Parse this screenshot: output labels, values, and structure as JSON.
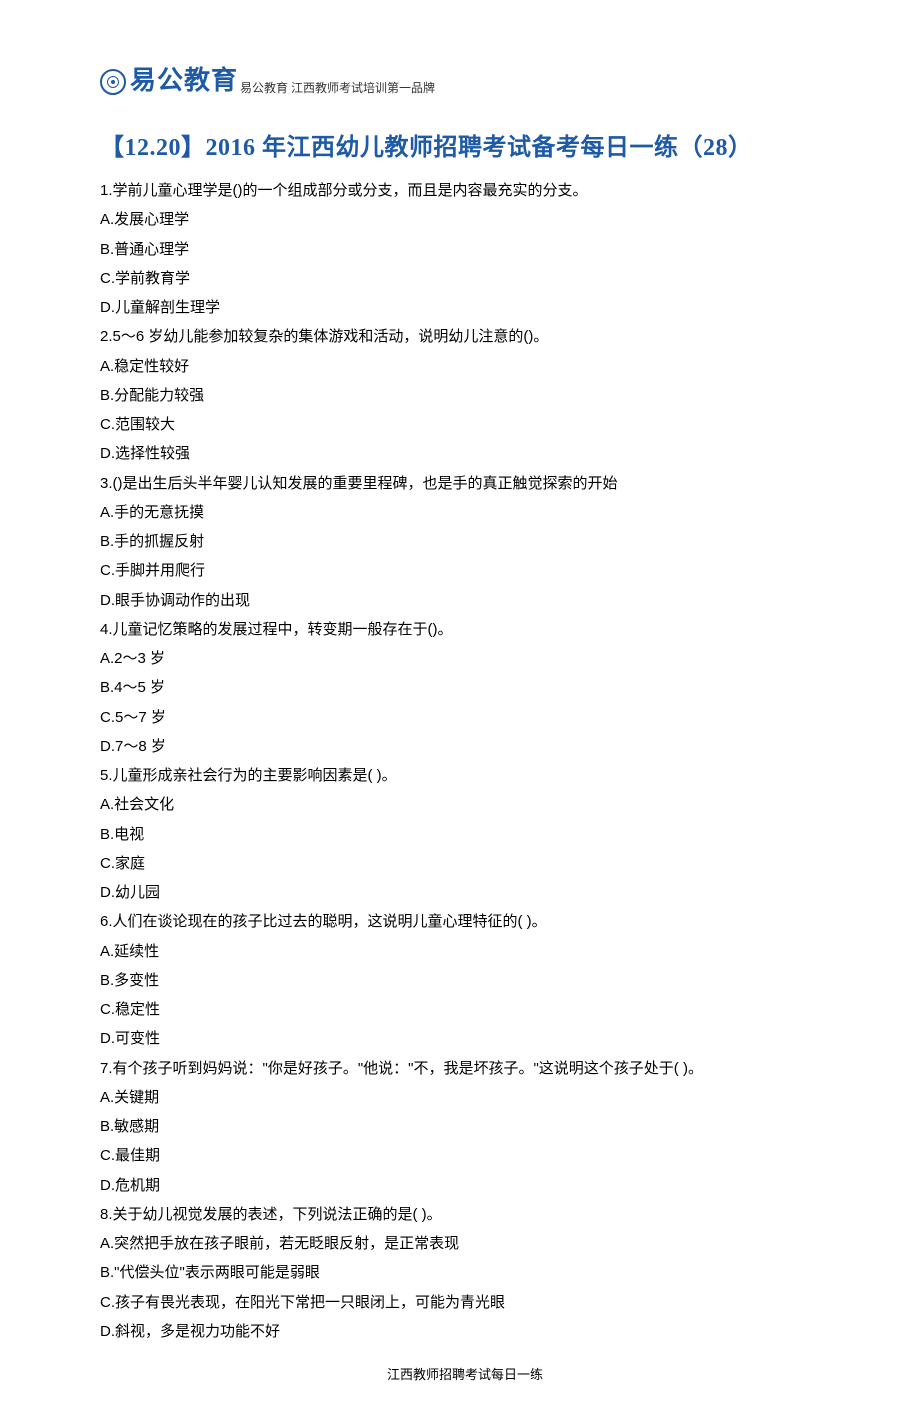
{
  "header": {
    "brand": "易公教育",
    "tagline": "易公教育  江西教师考试培训第一品牌"
  },
  "title": "【12.20】2016 年江西幼儿教师招聘考试备考每日一练（28）",
  "questions": [
    {
      "stem": "1.学前儿童心理学是()的一个组成部分或分支，而且是内容最充实的分支。",
      "options": [
        "A.发展心理学",
        "B.普通心理学",
        "C.学前教育学",
        "D.儿童解剖生理学"
      ]
    },
    {
      "stem": "2.5～6 岁幼儿能参加较复杂的集体游戏和活动，说明幼儿注意的()。",
      "options": [
        "A.稳定性较好",
        "B.分配能力较强",
        "C.范围较大",
        "D.选择性较强"
      ]
    },
    {
      "stem": "3.()是出生后头半年婴儿认知发展的重要里程碑，也是手的真正触觉探索的开始",
      "options": [
        "A.手的无意抚摸",
        "B.手的抓握反射",
        "C.手脚并用爬行",
        "D.眼手协调动作的出现"
      ]
    },
    {
      "stem": "4.儿童记忆策略的发展过程中，转变期一般存在于()。",
      "options": [
        "A.2～3 岁",
        "B.4～5 岁",
        "C.5～7 岁",
        "D.7～8 岁"
      ]
    },
    {
      "stem": "5.儿童形成亲社会行为的主要影响因素是( )。",
      "options": [
        "A.社会文化",
        "B.电视",
        "C.家庭",
        "D.幼儿园"
      ]
    },
    {
      "stem": "6.人们在谈论现在的孩子比过去的聪明，这说明儿童心理特征的( )。",
      "options": [
        "A.延续性",
        "B.多变性",
        "C.稳定性",
        "D.可变性"
      ]
    },
    {
      "stem": "7.有个孩子听到妈妈说：\"你是好孩子。\"他说：\"不，我是坏孩子。\"这说明这个孩子处于( )。",
      "options": [
        "A.关键期",
        "B.敏感期",
        "C.最佳期",
        "D.危机期"
      ]
    },
    {
      "stem": "8.关于幼儿视觉发展的表述，下列说法正确的是( )。",
      "options": [
        "A.突然把手放在孩子眼前，若无眨眼反射，是正常表现",
        "B.\"代偿头位\"表示两眼可能是弱眼",
        "C.孩子有畏光表现，在阳光下常把一只眼闭上，可能为青光眼",
        "D.斜视，多是视力功能不好"
      ]
    }
  ],
  "footer": "江西教师招聘考试每日一练",
  "colors": {
    "brand": "#1e5aa6",
    "text": "#000000",
    "background": "#ffffff"
  }
}
